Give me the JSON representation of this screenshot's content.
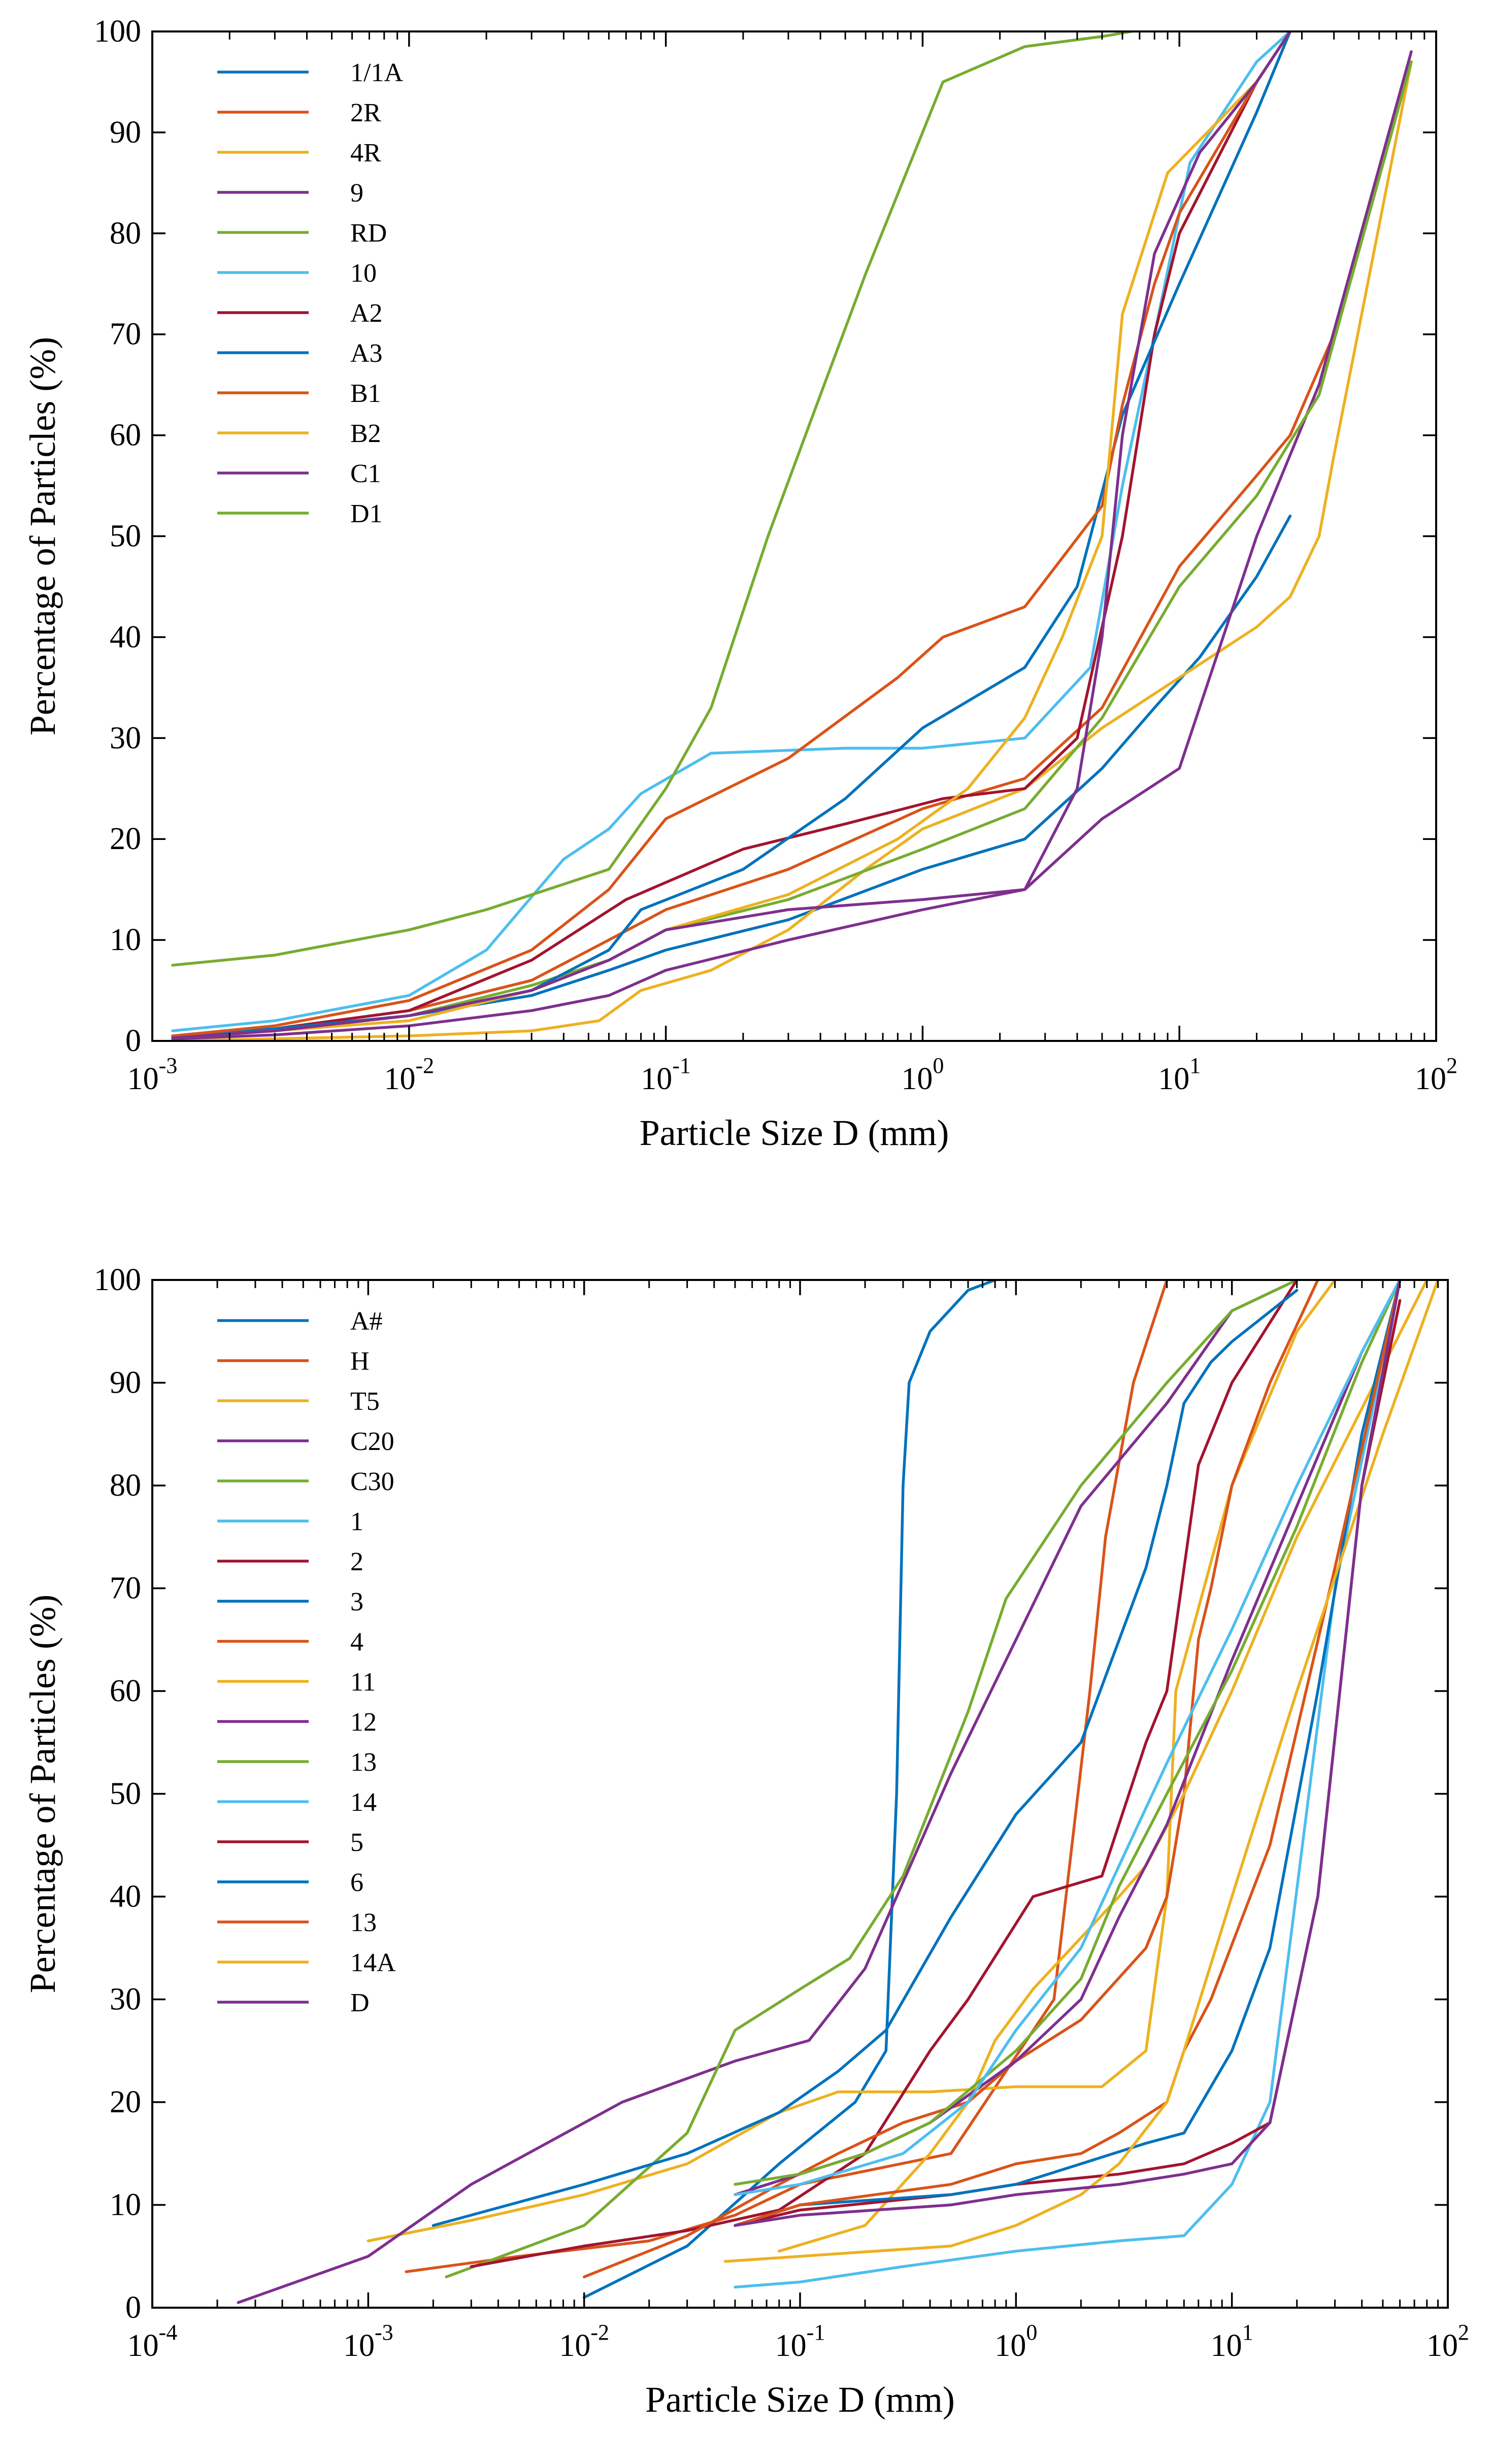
{
  "chart_data": [
    {
      "type": "line",
      "xscale": "log",
      "xlim": [
        0.001,
        100
      ],
      "ylim": [
        0,
        100
      ],
      "xticks": [
        0.001,
        0.01,
        0.1,
        1,
        10,
        100
      ],
      "xtick_labels": [
        [
          "10",
          "-3"
        ],
        [
          "10",
          "-2"
        ],
        [
          "10",
          "-1"
        ],
        [
          "10",
          "0"
        ],
        [
          "10",
          "1"
        ],
        [
          "10",
          "2"
        ]
      ],
      "yticks": [
        0,
        10,
        20,
        30,
        40,
        50,
        60,
        70,
        80,
        90,
        100
      ],
      "xlabel": "Particle Size D (mm)",
      "ylabel": "Percentage of Particles (%)",
      "legend_position": "top-left",
      "series": [
        {
          "name": "1/1A",
          "color": "#0072BD",
          "x": [
            0.0012,
            0.003,
            0.01,
            0.03,
            0.06,
            0.1,
            0.3,
            1,
            2.5,
            5,
            8,
            12,
            20,
            27
          ],
          "y": [
            0.3,
            1,
            2.5,
            4.5,
            7,
            9,
            12,
            17,
            20,
            27,
            33,
            38,
            46,
            52
          ]
        },
        {
          "name": "2R",
          "color": "#D95319",
          "x": [
            0.0012,
            0.003,
            0.01,
            0.03,
            0.06,
            0.1,
            0.3,
            1,
            2.5,
            5,
            10,
            20,
            27,
            40,
            80
          ],
          "y": [
            0.5,
            1.2,
            3,
            6,
            10,
            13,
            17,
            23,
            26,
            33,
            47,
            56,
            60,
            70,
            97
          ]
        },
        {
          "name": "4R",
          "color": "#EDB120",
          "x": [
            0.0012,
            0.01,
            0.03,
            0.055,
            0.08,
            0.15,
            0.3,
            0.6,
            1,
            2.5,
            5,
            10,
            20,
            27,
            35,
            40,
            80
          ],
          "y": [
            0,
            0.5,
            1,
            2,
            5,
            7,
            11,
            17,
            21,
            25,
            31,
            36,
            41,
            44,
            50,
            58,
            97
          ]
        },
        {
          "name": "9",
          "color": "#7E2F8E",
          "x": [
            0.0012,
            0.003,
            0.01,
            0.03,
            0.06,
            0.1,
            0.3,
            1,
            2.5,
            5,
            10,
            20,
            35,
            80
          ],
          "y": [
            0.2,
            0.6,
            1.5,
            3,
            4.5,
            7,
            10,
            13,
            15,
            22,
            27,
            50,
            65,
            98
          ]
        },
        {
          "name": "RD",
          "color": "#77AC30",
          "x": [
            0.0012,
            0.003,
            0.01,
            0.03,
            0.06,
            0.1,
            0.3,
            1,
            2.5,
            5,
            10,
            20,
            35,
            80
          ],
          "y": [
            0.3,
            1,
            2.5,
            5.5,
            8,
            11,
            14,
            19,
            23,
            32,
            45,
            54,
            64,
            97
          ]
        },
        {
          "name": "10",
          "color": "#4DBEEE",
          "x": [
            0.0012,
            0.003,
            0.01,
            0.02,
            0.04,
            0.06,
            0.08,
            0.15,
            0.5,
            1,
            2.5,
            4.5,
            6,
            8,
            11,
            20,
            27
          ],
          "y": [
            1,
            2,
            4.5,
            9,
            18,
            21,
            24.5,
            28.5,
            29,
            29,
            30,
            37,
            55,
            70,
            87,
            97,
            100
          ]
        },
        {
          "name": "A2",
          "color": "#A2142F",
          "x": [
            0.0012,
            0.003,
            0.01,
            0.03,
            0.07,
            0.2,
            0.5,
            1.2,
            2.5,
            4,
            6,
            8,
            10,
            20,
            27
          ],
          "y": [
            0.5,
            1.2,
            3,
            8,
            14,
            19,
            21.5,
            24,
            25,
            30,
            50,
            70,
            80,
            95,
            100
          ]
        },
        {
          "name": "A3",
          "color": "#0072BD",
          "x": [
            0.0012,
            0.003,
            0.01,
            0.03,
            0.06,
            0.08,
            0.2,
            0.5,
            1,
            2.5,
            4,
            6,
            10,
            20,
            27
          ],
          "y": [
            0.5,
            1.2,
            2.5,
            5,
            9,
            13,
            17,
            24,
            31,
            37,
            45,
            62,
            75,
            92,
            100
          ]
        },
        {
          "name": "B1",
          "color": "#D95319",
          "x": [
            0.0012,
            0.003,
            0.01,
            0.03,
            0.06,
            0.1,
            0.3,
            0.8,
            1.2,
            2.5,
            5,
            6,
            8,
            10,
            20,
            27
          ],
          "y": [
            0.5,
            1.5,
            4,
            9,
            15,
            22,
            28,
            36,
            40,
            43,
            53,
            63,
            75,
            82,
            95,
            100
          ]
        },
        {
          "name": "B2",
          "color": "#EDB120",
          "x": [
            0.0012,
            0.003,
            0.01,
            0.03,
            0.06,
            0.1,
            0.3,
            0.8,
            1.5,
            2.5,
            3.5,
            5,
            6,
            9,
            20,
            27
          ],
          "y": [
            0.3,
            1,
            2,
            5,
            8,
            11,
            14.5,
            20,
            25,
            32,
            40,
            50,
            72,
            86,
            95,
            100
          ]
        },
        {
          "name": "C1",
          "color": "#7E2F8E",
          "x": [
            0.0012,
            0.003,
            0.01,
            0.03,
            0.06,
            0.1,
            0.3,
            1,
            2.5,
            4,
            5,
            6,
            8,
            12,
            20,
            27
          ],
          "y": [
            0.3,
            1,
            2.5,
            5,
            8,
            11,
            13,
            14,
            15,
            25,
            40,
            60,
            78,
            88,
            95,
            100
          ]
        },
        {
          "name": "D1",
          "color": "#77AC30",
          "x": [
            0.0012,
            0.003,
            0.01,
            0.02,
            0.06,
            0.1,
            0.15,
            0.25,
            0.4,
            0.6,
            1.2,
            2.5,
            5,
            6.5
          ],
          "y": [
            7.5,
            8.5,
            11,
            13,
            17,
            25,
            33,
            50,
            64,
            76,
            95,
            98.5,
            99.5,
            100
          ]
        }
      ]
    },
    {
      "type": "line",
      "xscale": "log",
      "xlim": [
        0.0001,
        100
      ],
      "ylim": [
        0,
        100
      ],
      "xticks": [
        0.0001,
        0.001,
        0.01,
        0.1,
        1,
        10,
        100
      ],
      "xtick_labels": [
        [
          "10",
          "-4"
        ],
        [
          "10",
          "-3"
        ],
        [
          "10",
          "-2"
        ],
        [
          "10",
          "-1"
        ],
        [
          "10",
          "0"
        ],
        [
          "10",
          "1"
        ],
        [
          "10",
          "2"
        ]
      ],
      "yticks": [
        0,
        10,
        20,
        30,
        40,
        50,
        60,
        70,
        80,
        90,
        100
      ],
      "xlabel": "Particle Size D (mm)",
      "ylabel": "Percentage of Particles (%)",
      "legend_position": "top-left",
      "series": [
        {
          "name": "A#",
          "color": "#0072BD",
          "x": [
            0.01,
            0.03,
            0.08,
            0.18,
            0.25,
            0.28,
            0.3,
            0.32,
            0.4,
            0.6,
            0.8
          ],
          "y": [
            1,
            6,
            14,
            20,
            25,
            50,
            80,
            90,
            95,
            99,
            100
          ]
        },
        {
          "name": "H",
          "color": "#D95319",
          "x": [
            0.0015,
            0.005,
            0.02,
            0.05,
            0.1,
            0.5,
            1.5,
            2.2,
            2.6,
            3.5,
            5
          ],
          "y": [
            3.5,
            5,
            6.5,
            9,
            12,
            15,
            30,
            60,
            75,
            90,
            100
          ]
        },
        {
          "name": "T5",
          "color": "#EDB120",
          "x": [
            0.001,
            0.003,
            0.01,
            0.03,
            0.08,
            0.15,
            0.4,
            1,
            2.5,
            4,
            5,
            5.5,
            10,
            20,
            30
          ],
          "y": [
            6.5,
            8.5,
            11,
            14,
            19,
            21,
            21,
            21.5,
            21.5,
            25,
            40,
            60,
            80,
            95,
            100
          ]
        },
        {
          "name": "C20",
          "color": "#7E2F8E",
          "x": [
            0.00025,
            0.001,
            0.003,
            0.015,
            0.05,
            0.11,
            0.2,
            0.5,
            1,
            2,
            5,
            10,
            20
          ],
          "y": [
            0.5,
            5,
            12,
            20,
            24,
            26,
            33,
            52,
            65,
            78,
            88,
            97,
            100
          ]
        },
        {
          "name": "C30",
          "color": "#77AC30",
          "x": [
            0.0023,
            0.01,
            0.03,
            0.05,
            0.1,
            0.17,
            0.3,
            0.6,
            0.9,
            2,
            5,
            10,
            20
          ],
          "y": [
            3,
            8,
            17,
            27,
            31,
            34,
            42,
            58,
            69,
            80,
            90,
            97,
            100
          ]
        },
        {
          "name": "1",
          "color": "#4DBEEE",
          "x": [
            0.05,
            0.1,
            0.3,
            1,
            3,
            6,
            10,
            15,
            30,
            60
          ],
          "y": [
            2,
            2.5,
            4,
            5.5,
            6.5,
            7,
            12,
            20,
            70,
            100
          ]
        },
        {
          "name": "2",
          "color": "#A2142F",
          "x": [
            0.003,
            0.01,
            0.03,
            0.08,
            0.2,
            0.4,
            0.6,
            1.2,
            2.5,
            4,
            5,
            7,
            10,
            20
          ],
          "y": [
            4,
            6,
            7.5,
            9.5,
            15,
            25,
            30,
            40,
            42,
            55,
            60,
            82,
            90,
            100
          ]
        },
        {
          "name": "3",
          "color": "#0072BD",
          "x": [
            0.002,
            0.01,
            0.03,
            0.08,
            0.15,
            0.25,
            0.5,
            1,
            2,
            4,
            5,
            6,
            8,
            10,
            20
          ],
          "y": [
            8,
            12,
            15,
            19,
            23,
            27,
            38,
            48,
            55,
            72,
            80,
            88,
            92,
            94,
            99
          ]
        },
        {
          "name": "4",
          "color": "#D95319",
          "x": [
            0.01,
            0.03,
            0.08,
            0.15,
            0.3,
            0.6,
            1,
            2,
            4,
            5,
            6,
            7,
            8,
            10,
            15,
            25
          ],
          "y": [
            3,
            7,
            12,
            15,
            18,
            20,
            24,
            28,
            35,
            40,
            50,
            65,
            70,
            80,
            90,
            100
          ]
        },
        {
          "name": "11",
          "color": "#EDB120",
          "x": [
            0.08,
            0.2,
            0.4,
            0.6,
            0.8,
            1.2,
            2,
            3,
            4,
            6,
            10,
            20,
            80
          ],
          "y": [
            5.5,
            8,
            15,
            20,
            26,
            31,
            36,
            40,
            43,
            50,
            60,
            75,
            100
          ]
        },
        {
          "name": "12",
          "color": "#7E2F8E",
          "x": [
            0.05,
            0.1,
            0.2,
            0.4,
            1,
            2,
            3,
            5,
            10,
            20,
            40,
            60
          ],
          "y": [
            11,
            13,
            15,
            18,
            24,
            30,
            38,
            47,
            63,
            78,
            93,
            100
          ]
        },
        {
          "name": "13",
          "color": "#77AC30",
          "x": [
            0.05,
            0.1,
            0.2,
            0.4,
            1,
            2,
            3,
            5,
            10,
            20,
            40,
            60
          ],
          "y": [
            12,
            13,
            15,
            18,
            25,
            32,
            41,
            50,
            62,
            76,
            92,
            100
          ]
        },
        {
          "name": "14",
          "color": "#4DBEEE",
          "x": [
            0.05,
            0.1,
            0.3,
            0.6,
            1,
            2,
            3,
            5,
            10,
            20,
            40,
            60
          ],
          "y": [
            11,
            12,
            15,
            20,
            27,
            35,
            43,
            53,
            66,
            80,
            93,
            100
          ]
        },
        {
          "name": "5",
          "color": "#A2142F",
          "x": [
            0.05,
            0.1,
            0.5,
            1,
            3,
            6,
            10,
            15,
            25,
            40,
            60
          ],
          "y": [
            8,
            9.5,
            11,
            12,
            13,
            14,
            16,
            18,
            40,
            80,
            98
          ]
        },
        {
          "name": "6",
          "color": "#0072BD",
          "x": [
            0.05,
            0.1,
            0.5,
            1,
            2,
            4,
            6,
            10,
            15,
            25,
            40,
            60
          ],
          "y": [
            8,
            10,
            11,
            12,
            14,
            16,
            17,
            25,
            35,
            60,
            85,
            100
          ]
        },
        {
          "name": "13",
          "color": "#D95319",
          "x": [
            0.05,
            0.1,
            0.5,
            1,
            2,
            3,
            5,
            6,
            8,
            15,
            30,
            60
          ],
          "y": [
            8,
            10,
            12,
            14,
            15,
            17,
            20,
            25,
            30,
            45,
            72,
            100
          ]
        },
        {
          "name": "14A",
          "color": "#EDB120",
          "x": [
            0.045,
            0.1,
            0.5,
            1,
            2,
            3,
            5,
            6,
            10,
            20,
            50,
            90
          ],
          "y": [
            4.5,
            5,
            6,
            8,
            11,
            14,
            20,
            25,
            40,
            60,
            85,
            100
          ]
        },
        {
          "name": "D",
          "color": "#7E2F8E",
          "x": [
            0.05,
            0.1,
            0.5,
            1,
            3,
            6,
            10,
            15,
            25,
            40,
            60
          ],
          "y": [
            8,
            9,
            10,
            11,
            12,
            13,
            14,
            18,
            40,
            80,
            100
          ]
        }
      ]
    }
  ]
}
